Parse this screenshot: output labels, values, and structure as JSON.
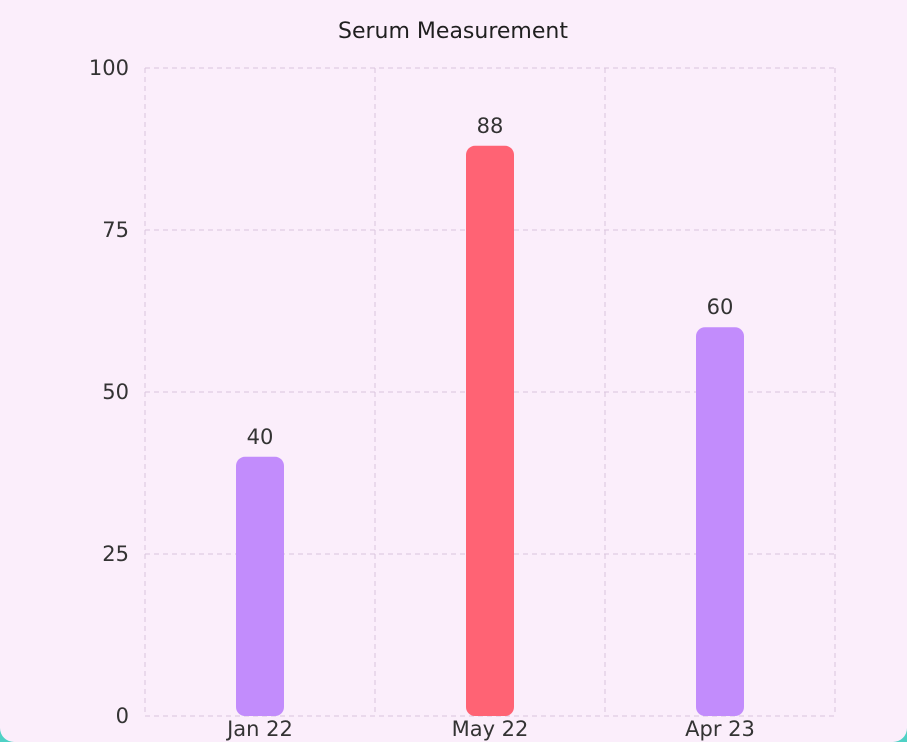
{
  "chart_data": {
    "type": "bar",
    "title": "Serum Measurement",
    "xlabel": "",
    "ylabel": "",
    "categories": [
      "Jan 22",
      "May 22",
      "Apr 23"
    ],
    "values": [
      40,
      88,
      60
    ],
    "ylim": [
      0,
      100
    ],
    "yticks": [
      0,
      25,
      50,
      75,
      100
    ],
    "grid": true,
    "bar_colors": [
      "#c28cfc",
      "#ff6374",
      "#c28cfc"
    ],
    "data_labels": true
  }
}
